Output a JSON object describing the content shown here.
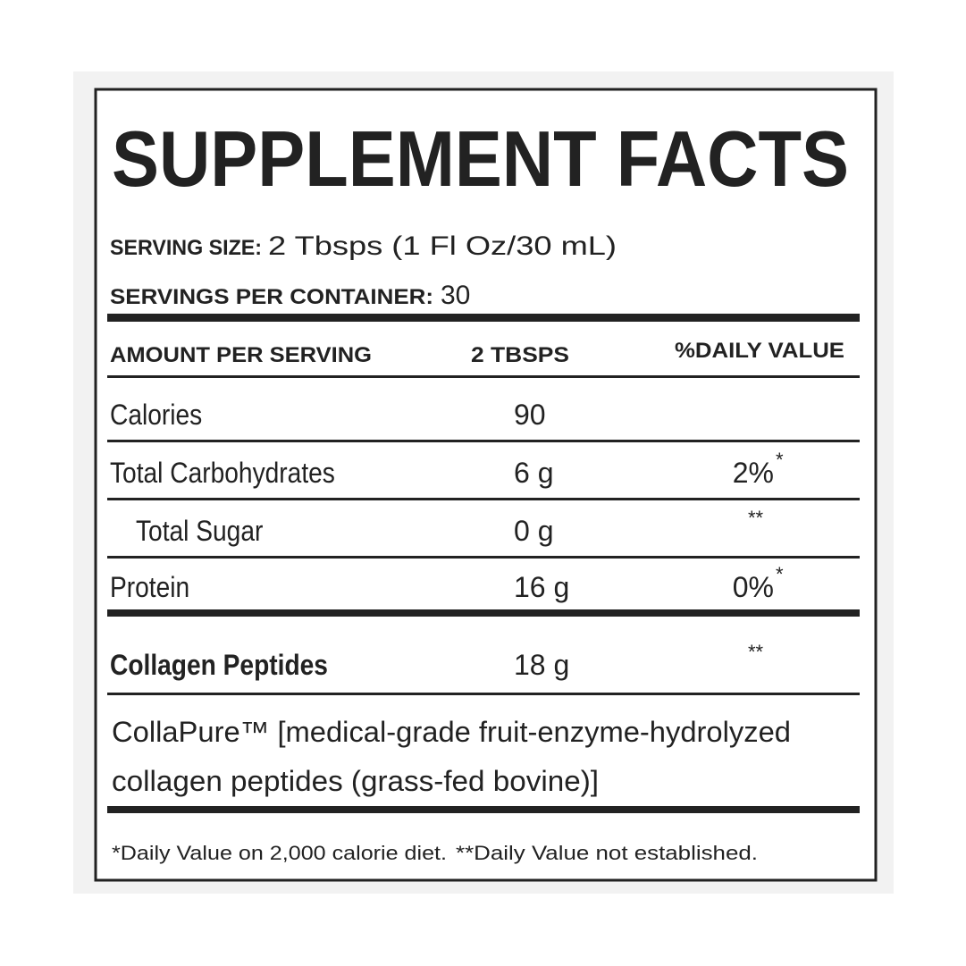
{
  "header": {
    "title": "SUPPLEMENT FACTS",
    "serving_size_label": "SERVING SIZE:",
    "serving_size": "2 Tbsps (1 Fl Oz/30 mL)",
    "servings_label": "SERVINGS PER CONTAINER:",
    "servings": "30"
  },
  "table": {
    "columns": [
      "AMOUNT PER SERVING",
      "2 TBSPS",
      "%DAILY VALUE"
    ],
    "rows": [
      {
        "name": "Calories",
        "amount": "90"
      },
      {
        "name": "Total Carbohydrates",
        "amount": "6 g",
        "daily_value": "2%",
        "note": "*"
      },
      {
        "name": "Total Sugar",
        "amount": "0 g",
        "note": "**"
      },
      {
        "name": "Protein",
        "amount": "16 g",
        "daily_value": "0%",
        "note": "*"
      },
      {
        "name": "Collagen Peptides",
        "amount": "18 g",
        "note": "**"
      }
    ]
  },
  "description": [
    "CollaPure™ [medical-grade fruit-enzyme-hydrolyzed",
    "collagen peptides (grass-fed bovine)]"
  ],
  "footnotes": [
    "*Daily Value on 2,000 calorie diet.",
    "**Daily Value not established."
  ]
}
